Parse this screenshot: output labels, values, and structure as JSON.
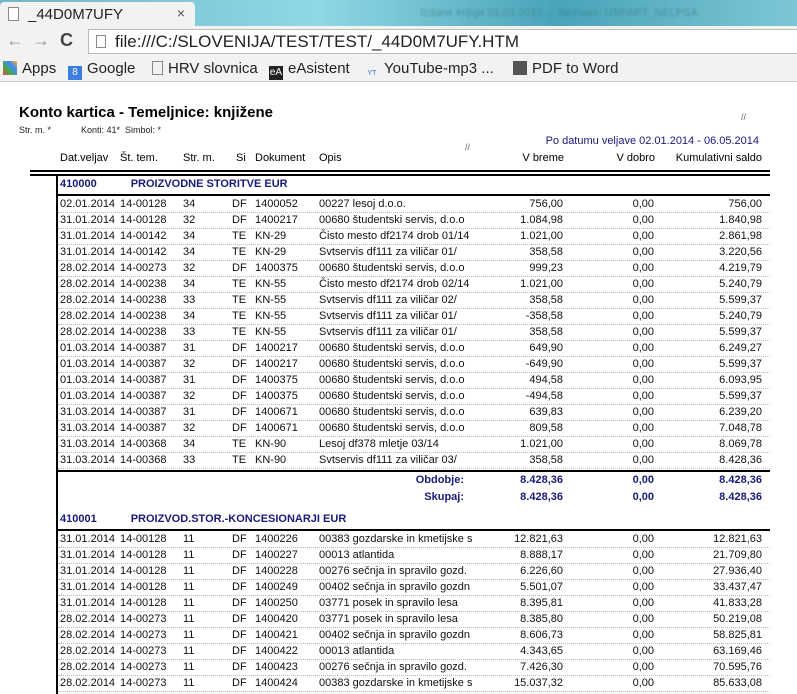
{
  "browser": {
    "tab_title": "_44D0M7UFY",
    "other_tab": "Izdane knjige 01.01.2015 ... Seznam: USPART_NELPSA",
    "url": "file:///C:/SLOVENIJA/TEST/TEST/_44D0M7UFY.HTM",
    "bookmarks": [
      {
        "label": "Apps",
        "icon": "apps-grid-icon"
      },
      {
        "label": "Google",
        "icon": "google-icon"
      },
      {
        "label": "HRV slovnica",
        "icon": "page-icon"
      },
      {
        "label": "eAsistent",
        "icon": "easistent-icon"
      },
      {
        "label": "YouTube-mp3 ...",
        "icon": "youtube-mp3-icon"
      },
      {
        "label": "PDF to Word",
        "icon": "pdf-icon"
      }
    ]
  },
  "report": {
    "title": "Konto kartica - Temeljnice: knjižene",
    "filter_strm": "Str. m. *",
    "filter_konti": "Konti: 41*  Simbol: *",
    "period": "Po datumu veljave 02.01.2014 - 06.05.2014",
    "headers": [
      "Dat.veljav",
      "Št. tem.",
      "Str. m.",
      "Si",
      "Dokument",
      "Opis",
      "V breme",
      "V dobro",
      "Kumulativni saldo"
    ],
    "accent": "#1a1a7a",
    "groups": [
      {
        "code": "410000",
        "name": "PROIZVODNE STORITVE EUR",
        "rows": [
          [
            "02.01.2014",
            "14-00128",
            "34",
            "DF",
            "1400052",
            "00227 lesoj d.o.o.",
            "756,00",
            "0,00",
            "756,00"
          ],
          [
            "31.01.2014",
            "14-00128",
            "32",
            "DF",
            "1400217",
            "00680 študentski servis, d.o.o",
            "1.084,98",
            "0,00",
            "1.840,98"
          ],
          [
            "31.01.2014",
            "14-00142",
            "34",
            "TE",
            "KN-29",
            "Čisto mesto df2174 drob 01/14",
            "1.021,00",
            "0,00",
            "2.861,98"
          ],
          [
            "31.01.2014",
            "14-00142",
            "34",
            "TE",
            "KN-29",
            "Svtservis df111 za viličar 01/",
            "358,58",
            "0,00",
            "3.220,56"
          ],
          [
            "28.02.2014",
            "14-00273",
            "32",
            "DF",
            "1400375",
            "00680 študentski servis, d.o.o",
            "999,23",
            "0,00",
            "4.219,79"
          ],
          [
            "28.02.2014",
            "14-00238",
            "34",
            "TE",
            "KN-55",
            "Čisto mesto df2174 drob 02/14",
            "1.021,00",
            "0,00",
            "5.240,79"
          ],
          [
            "28.02.2014",
            "14-00238",
            "33",
            "TE",
            "KN-55",
            "Svtservis df111 za viličar 02/",
            "358,58",
            "0,00",
            "5.599,37"
          ],
          [
            "28.02.2014",
            "14-00238",
            "34",
            "TE",
            "KN-55",
            "Svtservis df111 za viličar 01/",
            "-358,58",
            "0,00",
            "5.240,79"
          ],
          [
            "28.02.2014",
            "14-00238",
            "33",
            "TE",
            "KN-55",
            "Svtservis df111 za viličar 01/",
            "358,58",
            "0,00",
            "5.599,37"
          ],
          [
            "01.03.2014",
            "14-00387",
            "31",
            "DF",
            "1400217",
            "00680 študentski servis, d.o.o",
            "649,90",
            "0,00",
            "6.249,27"
          ],
          [
            "01.03.2014",
            "14-00387",
            "32",
            "DF",
            "1400217",
            "00680 študentski servis, d.o.o",
            "-649,90",
            "0,00",
            "5.599,37"
          ],
          [
            "01.03.2014",
            "14-00387",
            "31",
            "DF",
            "1400375",
            "00680 študentski servis, d.o.o",
            "494,58",
            "0,00",
            "6.093,95"
          ],
          [
            "01.03.2014",
            "14-00387",
            "32",
            "DF",
            "1400375",
            "00680 študentski servis, d.o.o",
            "-494,58",
            "0,00",
            "5.599,37"
          ],
          [
            "31.03.2014",
            "14-00387",
            "31",
            "DF",
            "1400671",
            "00680 študentski servis, d.o.o",
            "639,83",
            "0,00",
            "6.239,20"
          ],
          [
            "31.03.2014",
            "14-00387",
            "32",
            "DF",
            "1400671",
            "00680 študentski servis, d.o.o",
            "809,58",
            "0,00",
            "7.048,78"
          ],
          [
            "31.03.2014",
            "14-00368",
            "34",
            "TE",
            "KN-90",
            "Lesoj df378 mletje 03/14",
            "1.021,00",
            "0,00",
            "8.069,78"
          ],
          [
            "31.03.2014",
            "14-00368",
            "33",
            "TE",
            "KN-90",
            "Svtservis df111 za viličar 03/",
            "358,58",
            "0,00",
            "8.428,36"
          ]
        ],
        "totals": [
          {
            "label": "Obdobje:",
            "breme": "8.428,36",
            "dobro": "0,00",
            "saldo": "8.428,36"
          },
          {
            "label": "Skupaj:",
            "breme": "8.428,36",
            "dobro": "0,00",
            "saldo": "8.428,36"
          }
        ]
      },
      {
        "code": "410001",
        "name": "PROIZVOD.STOR.-KONCESIONARJI EUR",
        "rows": [
          [
            "31.01.2014",
            "14-00128",
            "11",
            "DF",
            "1400226",
            "00383 gozdarske in kmetijske s",
            "12.821,63",
            "0,00",
            "12.821,63"
          ],
          [
            "31.01.2014",
            "14-00128",
            "11",
            "DF",
            "1400227",
            "00013 atlantida",
            "8.888,17",
            "0,00",
            "21.709,80"
          ],
          [
            "31.01.2014",
            "14-00128",
            "11",
            "DF",
            "1400228",
            "00276 sečnja in spravilo gozd.",
            "6.226,60",
            "0,00",
            "27.936,40"
          ],
          [
            "31.01.2014",
            "14-00128",
            "11",
            "DF",
            "1400249",
            "00402 sečnja in spravilo gozdn",
            "5.501,07",
            "0,00",
            "33.437,47"
          ],
          [
            "31.01.2014",
            "14-00128",
            "11",
            "DF",
            "1400250",
            "03771 posek in spravilo lesa",
            "8.395,81",
            "0,00",
            "41.833,28"
          ],
          [
            "28.02.2014",
            "14-00273",
            "11",
            "DF",
            "1400420",
            "03771 posek in spravilo lesa",
            "8.385,80",
            "0,00",
            "50.219,08"
          ],
          [
            "28.02.2014",
            "14-00273",
            "11",
            "DF",
            "1400421",
            "00402 sečnja in spravilo gozdn",
            "8.606,73",
            "0,00",
            "58.825,81"
          ],
          [
            "28.02.2014",
            "14-00273",
            "11",
            "DF",
            "1400422",
            "00013 atlantida",
            "4.343,65",
            "0,00",
            "63.169,46"
          ],
          [
            "28.02.2014",
            "14-00273",
            "11",
            "DF",
            "1400423",
            "00276 sečnja in spravilo gozd.",
            "7.426,30",
            "0,00",
            "70.595,76"
          ],
          [
            "28.02.2014",
            "14-00273",
            "11",
            "DF",
            "1400424",
            "00383 gozdarske in kmetijske s",
            "15.037,32",
            "0,00",
            "85.633,08"
          ]
        ]
      }
    ]
  }
}
